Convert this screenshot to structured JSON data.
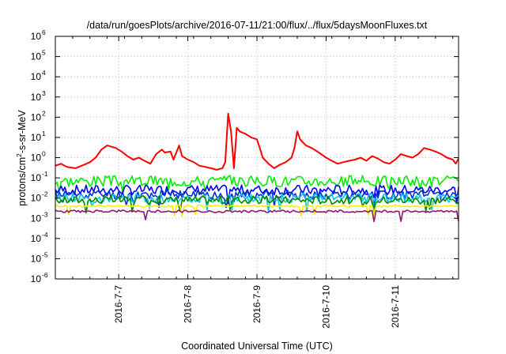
{
  "chart_data": {
    "type": "line",
    "title": "/data/run/goesPlots/archive/2016-07-11/21:00/flux/../flux/5daysMoonFluxes.txt",
    "xlabel": "Coordinated Universal Time (UTC)",
    "ylabel": {
      "prefix": "protons/cm",
      "sup": "2",
      "suffix": "-s-sr-MeV"
    },
    "yscale": "log",
    "ylim": [
      1e-06,
      1000000.0
    ],
    "xlim": [
      "2016-07-06T02:00",
      "2016-07-11T22:00"
    ],
    "grid": true,
    "x_ticks": [
      {
        "t": "2016-07-07T00:00",
        "label": "2016-7-7"
      },
      {
        "t": "2016-07-08T00:00",
        "label": "2016-7-8"
      },
      {
        "t": "2016-07-09T00:00",
        "label": "2016-7-9"
      },
      {
        "t": "2016-07-10T00:00",
        "label": "2016-7-10"
      },
      {
        "t": "2016-07-11T00:00",
        "label": "2016-7-11"
      }
    ],
    "y_ticks": [
      {
        "exp": "-6"
      },
      {
        "exp": "-5"
      },
      {
        "exp": "-4"
      },
      {
        "exp": "-3"
      },
      {
        "exp": "-2"
      },
      {
        "exp": "-1"
      },
      {
        "exp": "0"
      },
      {
        "exp": "1"
      },
      {
        "exp": "2"
      },
      {
        "exp": "3"
      },
      {
        "exp": "4"
      },
      {
        "exp": "5"
      },
      {
        "exp": "6"
      }
    ],
    "series": [
      {
        "color": "#ff0000",
        "points": [
          [
            "2016-07-06T02:00",
            0.4
          ],
          [
            "2016-07-06T04:00",
            0.5
          ],
          [
            "2016-07-06T06:00",
            0.35
          ],
          [
            "2016-07-06T09:00",
            0.3
          ],
          [
            "2016-07-06T12:00",
            0.45
          ],
          [
            "2016-07-06T14:00",
            0.6
          ],
          [
            "2016-07-06T16:00",
            1.0
          ],
          [
            "2016-07-06T18:00",
            2.5
          ],
          [
            "2016-07-06T20:00",
            4.0
          ],
          [
            "2016-07-06T23:00",
            3.0
          ],
          [
            "2016-07-07T01:00",
            2.0
          ],
          [
            "2016-07-07T03:00",
            1.2
          ],
          [
            "2016-07-07T05:00",
            0.8
          ],
          [
            "2016-07-07T07:00",
            1.0
          ],
          [
            "2016-07-07T09:00",
            0.7
          ],
          [
            "2016-07-07T11:00",
            0.5
          ],
          [
            "2016-07-07T13:00",
            1.5
          ],
          [
            "2016-07-07T15:00",
            2.5
          ],
          [
            "2016-07-07T16:00",
            1.8
          ],
          [
            "2016-07-07T18:00",
            2.0
          ],
          [
            "2016-07-07T19:00",
            0.8
          ],
          [
            "2016-07-07T21:00",
            4.0
          ],
          [
            "2016-07-07T22:00",
            1.2
          ],
          [
            "2016-07-08T00:00",
            0.8
          ],
          [
            "2016-07-08T02:00",
            0.6
          ],
          [
            "2016-07-08T04:00",
            0.4
          ],
          [
            "2016-07-08T06:00",
            0.35
          ],
          [
            "2016-07-08T08:00",
            0.3
          ],
          [
            "2016-07-08T10:00",
            0.25
          ],
          [
            "2016-07-08T12:00",
            0.3
          ],
          [
            "2016-07-08T13:00",
            0.6
          ],
          [
            "2016-07-08T14:00",
            150
          ],
          [
            "2016-07-08T15:00",
            20
          ],
          [
            "2016-07-08T16:00",
            0.3
          ],
          [
            "2016-07-08T17:00",
            30
          ],
          [
            "2016-07-08T18:00",
            20
          ],
          [
            "2016-07-08T20:00",
            15
          ],
          [
            "2016-07-08T22:00",
            10
          ],
          [
            "2016-07-09T00:00",
            8.0
          ],
          [
            "2016-07-09T01:00",
            3.0
          ],
          [
            "2016-07-09T02:00",
            1.0
          ],
          [
            "2016-07-09T04:00",
            0.5
          ],
          [
            "2016-07-09T06:00",
            0.3
          ],
          [
            "2016-07-09T08:00",
            0.45
          ],
          [
            "2016-07-09T10:00",
            0.6
          ],
          [
            "2016-07-09T12:00",
            1.0
          ],
          [
            "2016-07-09T13:00",
            3.0
          ],
          [
            "2016-07-09T14:00",
            20
          ],
          [
            "2016-07-09T15:00",
            8.0
          ],
          [
            "2016-07-09T17:00",
            4.0
          ],
          [
            "2016-07-09T19:00",
            3.0
          ],
          [
            "2016-07-09T21:00",
            2.0
          ],
          [
            "2016-07-10T00:00",
            1.0
          ],
          [
            "2016-07-10T02:00",
            0.7
          ],
          [
            "2016-07-10T04:00",
            0.5
          ],
          [
            "2016-07-10T06:00",
            0.6
          ],
          [
            "2016-07-10T08:00",
            0.7
          ],
          [
            "2016-07-10T10:00",
            0.8
          ],
          [
            "2016-07-10T12:00",
            1.0
          ],
          [
            "2016-07-10T14:00",
            0.7
          ],
          [
            "2016-07-10T16:00",
            1.2
          ],
          [
            "2016-07-10T18:00",
            0.9
          ],
          [
            "2016-07-10T20:00",
            0.6
          ],
          [
            "2016-07-10T22:00",
            0.5
          ],
          [
            "2016-07-11T00:00",
            0.8
          ],
          [
            "2016-07-11T02:00",
            1.5
          ],
          [
            "2016-07-11T04:00",
            1.2
          ],
          [
            "2016-07-11T06:00",
            1.0
          ],
          [
            "2016-07-11T08:00",
            1.5
          ],
          [
            "2016-07-11T10:00",
            3.0
          ],
          [
            "2016-07-11T12:00",
            2.5
          ],
          [
            "2016-07-11T14:00",
            2.0
          ],
          [
            "2016-07-11T16:00",
            1.5
          ],
          [
            "2016-07-11T18:00",
            1.0
          ],
          [
            "2016-07-11T20:00",
            0.8
          ],
          [
            "2016-07-11T21:00",
            0.5
          ],
          [
            "2016-07-11T22:00",
            0.9
          ]
        ]
      },
      {
        "color": "#00ee00",
        "base": 0.07,
        "amp": 0.55,
        "seed": 3
      },
      {
        "color": "#0000ff",
        "base": 0.025,
        "amp": 0.5,
        "seed": 7
      },
      {
        "color": "#0033cc",
        "base": 0.015,
        "amp": 0.45,
        "seed": 11
      },
      {
        "color": "#00c8e6",
        "base": 0.01,
        "amp": 0.45,
        "seed": 13
      },
      {
        "color": "#008800",
        "base": 0.008,
        "amp": 0.4,
        "seed": 17
      },
      {
        "color": "#ffee00",
        "base": 0.004,
        "amp": 0.1,
        "seed": 19
      },
      {
        "color": "#8b1a6b",
        "base": 0.0022,
        "amp": 0.12,
        "seed": 23
      }
    ]
  }
}
